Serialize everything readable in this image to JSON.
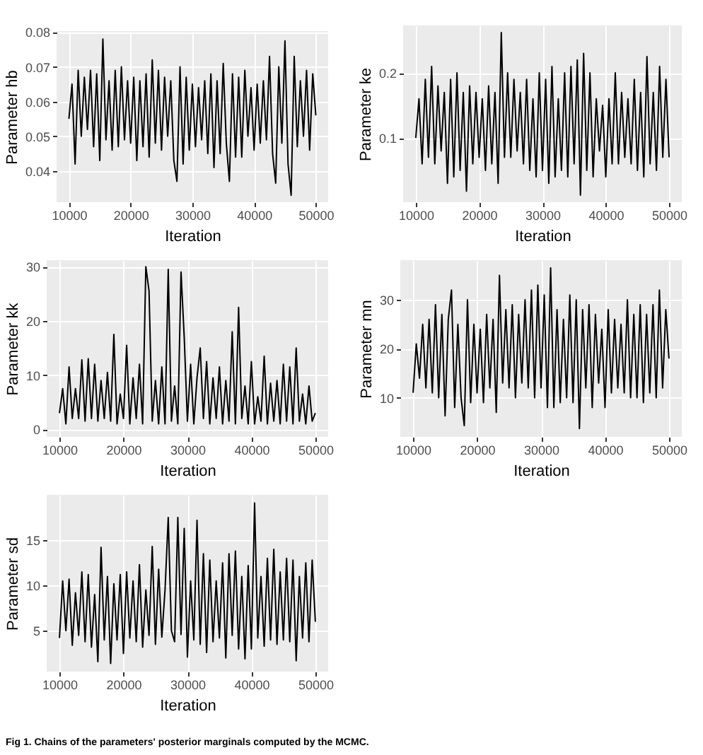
{
  "chart_data": [
    {
      "type": "line",
      "xlabel": "Iteration",
      "ylabel": "Parameter hb",
      "color": "#000000",
      "grid": true,
      "xlim": [
        8000,
        52000
      ],
      "xticks": [
        10000,
        20000,
        30000,
        40000,
        50000
      ],
      "ylim": [
        0.031,
        0.0803
      ],
      "yticks": [
        0.04,
        0.05,
        0.06,
        0.07,
        0.08
      ],
      "x": [
        10000,
        10500,
        11000,
        11500,
        12000,
        12500,
        13000,
        13500,
        14000,
        14500,
        15000,
        15500,
        16000,
        16500,
        17000,
        17500,
        18000,
        18500,
        19000,
        19500,
        20000,
        20500,
        21000,
        21500,
        22000,
        22500,
        23000,
        23500,
        24000,
        24500,
        25000,
        25500,
        26000,
        26500,
        27000,
        27500,
        28000,
        28500,
        29000,
        29500,
        30000,
        30500,
        31000,
        31500,
        32000,
        32500,
        33000,
        33500,
        34000,
        34500,
        35000,
        35500,
        36000,
        36500,
        37000,
        37500,
        38000,
        38500,
        39000,
        39500,
        40000,
        40500,
        41000,
        41500,
        42000,
        42500,
        43000,
        43500,
        44000,
        44500,
        45000,
        45500,
        46000,
        46500,
        47000,
        47500,
        48000,
        48500,
        49000,
        49500,
        50000
      ],
      "values": [
        0.055,
        0.065,
        0.042,
        0.069,
        0.05,
        0.067,
        0.052,
        0.069,
        0.047,
        0.068,
        0.043,
        0.078,
        0.049,
        0.066,
        0.046,
        0.069,
        0.047,
        0.07,
        0.049,
        0.066,
        0.048,
        0.067,
        0.043,
        0.066,
        0.047,
        0.068,
        0.044,
        0.072,
        0.048,
        0.069,
        0.046,
        0.067,
        0.05,
        0.066,
        0.043,
        0.037,
        0.07,
        0.042,
        0.067,
        0.046,
        0.065,
        0.047,
        0.064,
        0.049,
        0.066,
        0.045,
        0.068,
        0.041,
        0.066,
        0.045,
        0.071,
        0.048,
        0.037,
        0.068,
        0.044,
        0.067,
        0.044,
        0.069,
        0.05,
        0.064,
        0.046,
        0.065,
        0.048,
        0.066,
        0.049,
        0.073,
        0.045,
        0.0365,
        0.07,
        0.048,
        0.0775,
        0.042,
        0.033,
        0.073,
        0.047,
        0.066,
        0.05,
        0.069,
        0.046,
        0.068,
        0.056
      ]
    },
    {
      "type": "line",
      "xlabel": "Iteration",
      "ylabel": "Parameter ke",
      "color": "#000000",
      "grid": true,
      "xlim": [
        8000,
        52000
      ],
      "xticks": [
        10000,
        20000,
        30000,
        40000,
        50000
      ],
      "ylim": [
        0.001,
        0.273
      ],
      "yticks": [
        0.1,
        0.2
      ],
      "x": [
        10000,
        10500,
        11000,
        11500,
        12000,
        12500,
        13000,
        13500,
        14000,
        14500,
        15000,
        15500,
        16000,
        16500,
        17000,
        17500,
        18000,
        18500,
        19000,
        19500,
        20000,
        20500,
        21000,
        21500,
        22000,
        22500,
        23000,
        23500,
        24000,
        24500,
        25000,
        25500,
        26000,
        26500,
        27000,
        27500,
        28000,
        28500,
        29000,
        29500,
        30000,
        30500,
        31000,
        31500,
        32000,
        32500,
        33000,
        33500,
        34000,
        34500,
        35000,
        35500,
        36000,
        36500,
        37000,
        37500,
        38000,
        38500,
        39000,
        39500,
        40000,
        40500,
        41000,
        41500,
        42000,
        42500,
        43000,
        43500,
        44000,
        44500,
        45000,
        45500,
        46000,
        46500,
        47000,
        47500,
        48000,
        48500,
        49000,
        49500,
        50000
      ],
      "values": [
        0.1,
        0.16,
        0.06,
        0.19,
        0.07,
        0.21,
        0.06,
        0.18,
        0.08,
        0.17,
        0.03,
        0.19,
        0.04,
        0.2,
        0.05,
        0.17,
        0.018,
        0.18,
        0.06,
        0.17,
        0.07,
        0.16,
        0.05,
        0.18,
        0.06,
        0.17,
        0.03,
        0.262,
        0.07,
        0.2,
        0.07,
        0.19,
        0.08,
        0.17,
        0.06,
        0.19,
        0.05,
        0.16,
        0.04,
        0.2,
        0.05,
        0.19,
        0.03,
        0.21,
        0.04,
        0.16,
        0.05,
        0.2,
        0.04,
        0.21,
        0.06,
        0.22,
        0.012,
        0.23,
        0.05,
        0.2,
        0.04,
        0.16,
        0.08,
        0.15,
        0.04,
        0.16,
        0.06,
        0.2,
        0.06,
        0.17,
        0.07,
        0.16,
        0.06,
        0.19,
        0.05,
        0.17,
        0.04,
        0.225,
        0.06,
        0.17,
        0.05,
        0.21,
        0.07,
        0.19,
        0.07
      ]
    },
    {
      "type": "line",
      "xlabel": "Iteration",
      "ylabel": "Parameter kk",
      "color": "#000000",
      "grid": true,
      "xlim": [
        8000,
        52000
      ],
      "xticks": [
        10000,
        20000,
        30000,
        40000,
        50000
      ],
      "ylim": [
        -1.4,
        31.2
      ],
      "yticks": [
        0,
        10,
        20,
        30
      ],
      "x": [
        10000,
        10500,
        11000,
        11500,
        12000,
        12500,
        13000,
        13500,
        14000,
        14500,
        15000,
        15500,
        16000,
        16500,
        17000,
        17500,
        18000,
        18500,
        19000,
        19500,
        20000,
        20500,
        21000,
        21500,
        22000,
        22500,
        23000,
        23500,
        24000,
        24500,
        25000,
        25500,
        26000,
        26500,
        27000,
        27500,
        28000,
        28500,
        29000,
        29500,
        30000,
        30500,
        31000,
        31500,
        32000,
        32500,
        33000,
        33500,
        34000,
        34500,
        35000,
        35500,
        36000,
        36500,
        37000,
        37500,
        38000,
        38500,
        39000,
        39500,
        40000,
        40500,
        41000,
        41500,
        42000,
        42500,
        43000,
        43500,
        44000,
        44500,
        45000,
        45500,
        46000,
        46500,
        47000,
        47500,
        48000,
        48500,
        49000,
        49500,
        50000
      ],
      "values": [
        3,
        7.5,
        1,
        11.5,
        2,
        7.5,
        2,
        12.8,
        1.5,
        13,
        2,
        12,
        1.5,
        9,
        2,
        10.5,
        1.5,
        17.5,
        1,
        6.5,
        2,
        15.5,
        1,
        9.5,
        2,
        12,
        1,
        30,
        25.5,
        1.5,
        9,
        1,
        11.5,
        1,
        29.5,
        1.5,
        8,
        1,
        29,
        17,
        1.5,
        12,
        1,
        9.5,
        15,
        2,
        12.5,
        1,
        9.5,
        2,
        11.5,
        1,
        9,
        1.5,
        18,
        1,
        22.5,
        2,
        8,
        1,
        12.5,
        1,
        6,
        1.5,
        13.5,
        1,
        8.5,
        1.5,
        9,
        1,
        12,
        1.5,
        11.5,
        1,
        15,
        1.5,
        6.5,
        1,
        8,
        1.5,
        3
      ]
    },
    {
      "type": "line",
      "xlabel": "Iteration",
      "ylabel": "Parameter mn",
      "color": "#000000",
      "grid": true,
      "xlim": [
        8000,
        52000
      ],
      "xticks": [
        10000,
        20000,
        30000,
        40000,
        50000
      ],
      "ylim": [
        2,
        38.1
      ],
      "yticks": [
        10,
        20,
        30
      ],
      "x": [
        10000,
        10500,
        11000,
        11500,
        12000,
        12500,
        13000,
        13500,
        14000,
        14500,
        15000,
        15500,
        16000,
        16500,
        17000,
        17500,
        18000,
        18500,
        19000,
        19500,
        20000,
        20500,
        21000,
        21500,
        22000,
        22500,
        23000,
        23500,
        24000,
        24500,
        25000,
        25500,
        26000,
        26500,
        27000,
        27500,
        28000,
        28500,
        29000,
        29500,
        30000,
        30500,
        31000,
        31500,
        32000,
        32500,
        33000,
        33500,
        34000,
        34500,
        35000,
        35500,
        36000,
        36500,
        37000,
        37500,
        38000,
        38500,
        39000,
        39500,
        40000,
        40500,
        41000,
        41500,
        42000,
        42500,
        43000,
        43500,
        44000,
        44500,
        45000,
        45500,
        46000,
        46500,
        47000,
        47500,
        48000,
        48500,
        49000,
        49500,
        50000
      ],
      "values": [
        11,
        21,
        14,
        25,
        12,
        26,
        11,
        29,
        10,
        27,
        6.3,
        26,
        32,
        8,
        25,
        10,
        4.3,
        30,
        9,
        25,
        11,
        24,
        9,
        27,
        12,
        26,
        7,
        35,
        13,
        28,
        12,
        29,
        10,
        27,
        13,
        30,
        12,
        32,
        10,
        33,
        12,
        31,
        8,
        36.5,
        8,
        28,
        9,
        26,
        10,
        31,
        9,
        30,
        3.7,
        28,
        12,
        29,
        8,
        27,
        13,
        24,
        8,
        28,
        11,
        26,
        12,
        25,
        11,
        30,
        10,
        27,
        10,
        29,
        9,
        27,
        11,
        29,
        10,
        32,
        12,
        28,
        18
      ]
    },
    {
      "type": "line",
      "xlabel": "Iteration",
      "ylabel": "Parameter sd",
      "color": "#000000",
      "grid": true,
      "xlim": [
        8000,
        52000
      ],
      "xticks": [
        10000,
        20000,
        30000,
        40000,
        50000
      ],
      "ylim": [
        0.5,
        20
      ],
      "yticks": [
        5,
        10,
        15
      ],
      "annotations": [
        "Fig 1. Chains of the parameters' posterior marginals computed by the MCMC."
      ],
      "x": [
        10000,
        10500,
        11000,
        11500,
        12000,
        12500,
        13000,
        13500,
        14000,
        14500,
        15000,
        15500,
        16000,
        16500,
        17000,
        17500,
        18000,
        18500,
        19000,
        19500,
        20000,
        20500,
        21000,
        21500,
        22000,
        22500,
        23000,
        23500,
        24000,
        24500,
        25000,
        25500,
        26000,
        26500,
        27000,
        27500,
        28000,
        28500,
        29000,
        29500,
        30000,
        30500,
        31000,
        31500,
        32000,
        32500,
        33000,
        33500,
        34000,
        34500,
        35000,
        35500,
        36000,
        36500,
        37000,
        37500,
        38000,
        38500,
        39000,
        39500,
        40000,
        40500,
        41000,
        41500,
        42000,
        42500,
        43000,
        43500,
        44000,
        44500,
        45000,
        45500,
        46000,
        46500,
        47000,
        47500,
        48000,
        48500,
        49000,
        49500,
        50000
      ],
      "values": [
        4.2,
        10.5,
        5,
        10.7,
        3.4,
        9.2,
        4.5,
        11.5,
        3.8,
        11.2,
        3.2,
        9,
        1.6,
        14.2,
        4,
        11,
        1.4,
        10.2,
        4,
        11.2,
        2.5,
        11.5,
        4.2,
        10.5,
        3.8,
        12.3,
        3.2,
        9.5,
        4.5,
        14.3,
        3.5,
        11.8,
        4.3,
        9.5,
        17.5,
        5,
        3.8,
        17.5,
        4.6,
        16.3,
        2.1,
        10.5,
        4,
        17.2,
        3.5,
        13.5,
        2.6,
        12.8,
        3.8,
        10.5,
        4.2,
        12.5,
        2,
        13.5,
        4.5,
        13.8,
        3,
        11,
        1.9,
        12.2,
        3,
        19.1,
        4.2,
        11,
        3.3,
        13,
        4,
        14,
        3.5,
        11.5,
        4,
        13,
        3.8,
        12.8,
        1.7,
        11,
        4.2,
        12.5,
        3.8,
        12.8,
        6
      ]
    }
  ]
}
